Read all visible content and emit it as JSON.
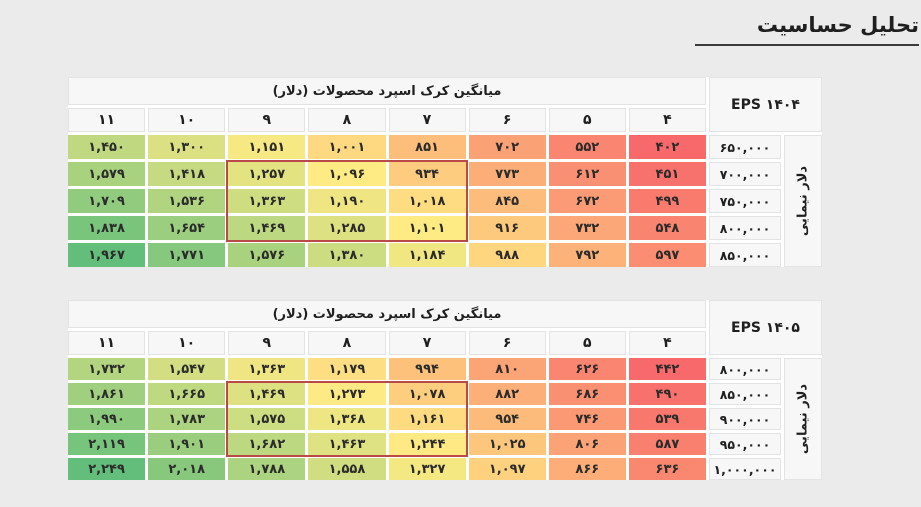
{
  "title": "تحلیل حساسیت",
  "style": {
    "heat_min_color": "#F8696B",
    "heat_mid_color": "#FFEB84",
    "heat_max_color": "#63BE7B",
    "highlight_border_color": "#B94A48"
  },
  "chart_data": [
    {
      "type": "heatmap",
      "title": "EPS ۱۴۰۴",
      "x_label": "میانگین کرک اسپرد محصولات (دلار)",
      "y_label": "دلار نیمایی",
      "x": [
        4,
        5,
        6,
        7,
        8,
        9,
        10,
        11
      ],
      "y": [
        650000,
        700000,
        750000,
        800000,
        850000
      ],
      "values": [
        [
          402,
          552,
          702,
          851,
          1001,
          1151,
          1300,
          1450
        ],
        [
          451,
          612,
          773,
          934,
          1096,
          1257,
          1418,
          1579
        ],
        [
          499,
          672,
          845,
          1018,
          1190,
          1363,
          1536,
          1709
        ],
        [
          548,
          732,
          916,
          1101,
          1285,
          1469,
          1654,
          1838
        ],
        [
          597,
          792,
          988,
          1184,
          1380,
          1576,
          1771,
          1967
        ]
      ],
      "colormap": "red-yellow-green, scaled to table min/median/max",
      "highlight": {
        "row_start": 1,
        "row_end": 3,
        "col_start": 3,
        "col_end": 5
      }
    },
    {
      "type": "heatmap",
      "title": "EPS ۱۴۰۵",
      "x_label": "میانگین کرک اسپرد محصولات (دلار)",
      "y_label": "دلار نیمایی",
      "x": [
        4,
        5,
        6,
        7,
        8,
        9,
        10,
        11
      ],
      "y": [
        800000,
        850000,
        900000,
        950000,
        1000000
      ],
      "values": [
        [
          442,
          626,
          810,
          994,
          1179,
          1363,
          1547,
          1732
        ],
        [
          490,
          686,
          882,
          1078,
          1273,
          1469,
          1665,
          1861
        ],
        [
          539,
          746,
          954,
          1161,
          1368,
          1575,
          1783,
          1990
        ],
        [
          587,
          806,
          1025,
          1244,
          1463,
          1682,
          1901,
          2119
        ],
        [
          636,
          866,
          1097,
          1327,
          1558,
          1788,
          2018,
          2249
        ]
      ],
      "colormap": "red-yellow-green, scaled to table min/median/max",
      "highlight": {
        "row_start": 1,
        "row_end": 3,
        "col_start": 3,
        "col_end": 5
      }
    }
  ]
}
